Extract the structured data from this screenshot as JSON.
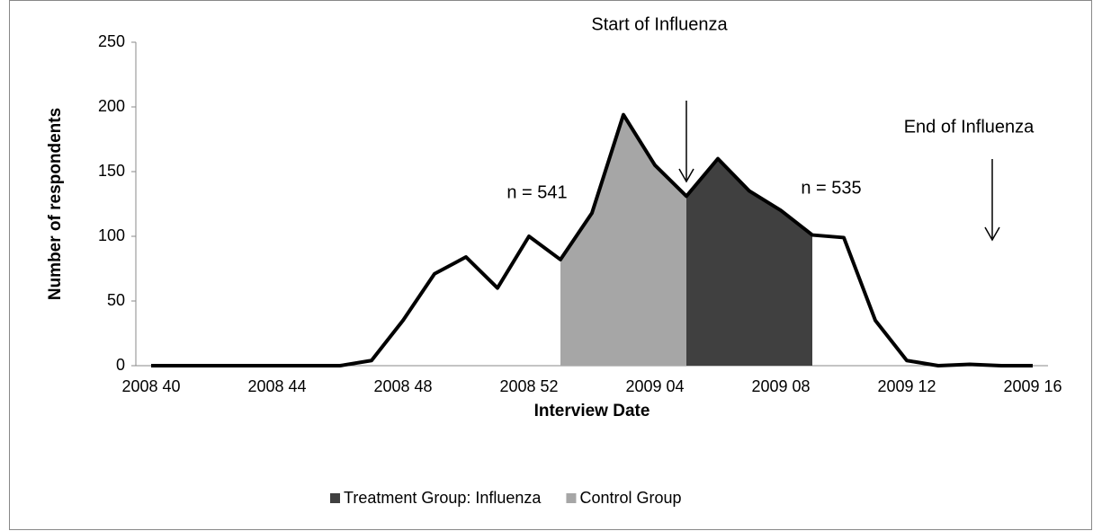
{
  "chart_data": {
    "type": "line",
    "x_label": "Interview Date",
    "y_label": "Number of respondents",
    "categories": [
      "2008 40",
      null,
      null,
      null,
      "2008 44",
      null,
      null,
      null,
      "2008 48",
      null,
      null,
      null,
      "2008 52",
      null,
      null,
      null,
      "2009 04",
      null,
      null,
      null,
      "2009 08",
      null,
      null,
      null,
      "2009 12",
      null,
      null,
      null,
      "2009 16"
    ],
    "series": [
      {
        "color": "#000000",
        "values": [
          0,
          0,
          0,
          0,
          0,
          0,
          0,
          4,
          35,
          71,
          84,
          60,
          100,
          82,
          118,
          194,
          155,
          131,
          160,
          135,
          120,
          101,
          99,
          35,
          4,
          0,
          1,
          0,
          0
        ]
      },
      {
        "name": "Treatment Group: Influenza",
        "color": "#404040",
        "values": [
          null,
          null,
          null,
          null,
          null,
          null,
          null,
          null,
          null,
          null,
          null,
          null,
          null,
          null,
          null,
          null,
          null,
          131,
          160,
          135,
          120,
          101,
          null,
          null,
          null,
          null,
          null,
          null,
          null
        ]
      },
      {
        "name": "Control Group",
        "color": "#a6a6a6",
        "values": [
          null,
          null,
          null,
          null,
          null,
          null,
          null,
          null,
          null,
          null,
          null,
          null,
          null,
          82,
          118,
          194,
          155,
          131,
          null,
          null,
          null,
          null,
          null,
          null,
          null,
          null,
          null,
          null,
          null
        ]
      }
    ],
    "annotations": [
      "Start of Influenza",
      "End of Influenza",
      "n = 541",
      "n = 535"
    ],
    "ylim": [
      0,
      250
    ],
    "yticks": [
      0,
      50,
      100,
      150,
      200,
      250
    ],
    "grid": false,
    "legend": "bottom"
  }
}
